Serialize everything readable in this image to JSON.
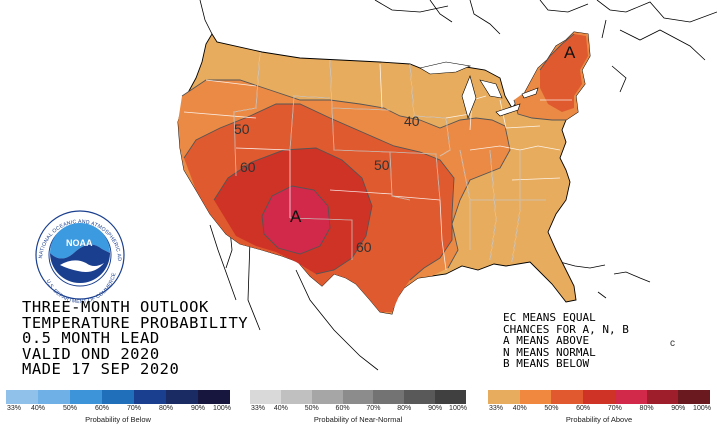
{
  "title_lines": [
    "THREE-MONTH OUTLOOK",
    "TEMPERATURE PROBABILITY",
    "0.5 MONTH LEAD",
    "VALID OND 2020",
    "MADE 17 SEP 2020"
  ],
  "legend_notes": [
    "EC MEANS EQUAL",
    "CHANCES FOR A, N, B",
    "A MEANS ABOVE",
    "N MEANS NORMAL",
    "B MEANS BELOW"
  ],
  "contour_labels": [
    "50",
    "40",
    "60",
    "50",
    "60"
  ],
  "area_letters": [
    "A",
    "A"
  ],
  "stray_mark": "c",
  "logo": {
    "name": "NOAA",
    "ring_text": "NATIONAL OCEANIC AND ATMOSPHERIC ADMINISTRATION",
    "bottom_text": "U.S. DEPARTMENT OF COMMERCE"
  },
  "scales": [
    {
      "label": "Probability of Below",
      "ticks": [
        "33%",
        "40%",
        "50%",
        "60%",
        "70%",
        "80%",
        "90%",
        "100%"
      ],
      "colors": [
        "#8fc1ea",
        "#6fb0e6",
        "#3d94d9",
        "#1f6fba",
        "#1a3f8f",
        "#1a2a63",
        "#16163e"
      ]
    },
    {
      "label": "Probability of Near-Normal",
      "ticks": [
        "33%",
        "40%",
        "50%",
        "60%",
        "70%",
        "80%",
        "90%",
        "100%"
      ],
      "colors": [
        "#d9d9d9",
        "#c0c0c0",
        "#a6a6a6",
        "#8c8c8c",
        "#737373",
        "#595959",
        "#404040"
      ]
    },
    {
      "label": "Probability of Above",
      "ticks": [
        "33%",
        "40%",
        "50%",
        "60%",
        "70%",
        "80%",
        "90%",
        "100%"
      ],
      "colors": [
        "#e8ac5e",
        "#f0893f",
        "#e0592f",
        "#cf3326",
        "#d2284a",
        "#9e1e2c",
        "#6a1a1f"
      ]
    }
  ],
  "map_colors": {
    "above_33_40": "#e8ac5e",
    "above_40_50": "#ea8a45",
    "above_50_60": "#df5a2f",
    "above_60_70": "#cf3326",
    "above_70_80": "#d2284a",
    "land_outside": "#ffffff"
  }
}
